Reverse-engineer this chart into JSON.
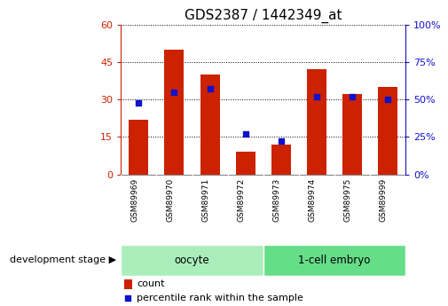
{
  "title": "GDS2387 / 1442349_at",
  "samples": [
    "GSM89969",
    "GSM89970",
    "GSM89971",
    "GSM89972",
    "GSM89973",
    "GSM89974",
    "GSM89975",
    "GSM89999"
  ],
  "counts": [
    22,
    50,
    40,
    9,
    12,
    42,
    32,
    35
  ],
  "percentile_ranks": [
    48,
    55,
    57,
    27,
    22,
    52,
    52,
    50
  ],
  "bar_color": "#cc2200",
  "dot_color": "#1111cc",
  "left_ylim": [
    0,
    60
  ],
  "right_ylim": [
    0,
    100
  ],
  "left_yticks": [
    0,
    15,
    30,
    45,
    60
  ],
  "right_yticks": [
    0,
    25,
    50,
    75,
    100
  ],
  "groups": [
    {
      "label": "oocyte",
      "start": 0,
      "end": 4,
      "color": "#aaeebb"
    },
    {
      "label": "1-cell embryo",
      "start": 4,
      "end": 8,
      "color": "#66dd88"
    }
  ],
  "group_label_prefix": "development stage",
  "legend_count_label": "count",
  "legend_percentile_label": "percentile rank within the sample",
  "bar_color_left": "#cc2200",
  "tick_color_right": "#1111cc",
  "xlabel_bg": "#d0d0d0",
  "bar_width": 0.55,
  "title_fontsize": 11
}
